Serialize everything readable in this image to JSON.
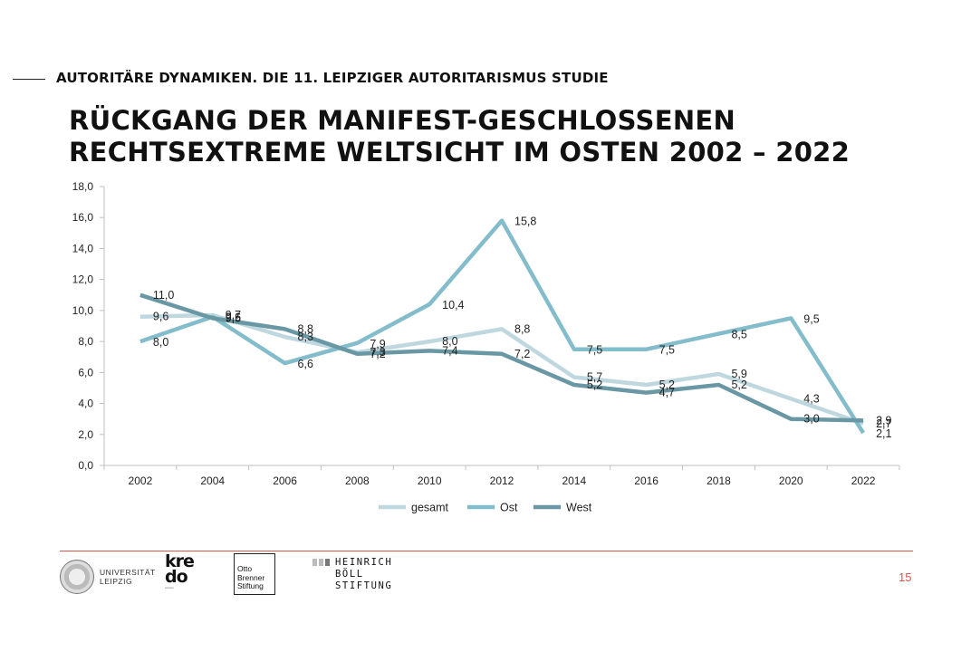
{
  "header": {
    "series_title": "AUTORITÄRE DYNAMIKEN. DIE 11. LEIPZIGER AUTORITARISMUS STUDIE",
    "title_line1": "RÜCKGANG DER MANIFEST-GESCHLOSSENEN",
    "title_line2": "RECHTSEXTREME WELTSICHT IM OSTEN 2002 – 2022"
  },
  "chart_data": {
    "type": "line",
    "title": "",
    "xlabel": "",
    "ylabel": "",
    "x": [
      "2002",
      "2004",
      "2006",
      "2008",
      "2010",
      "2012",
      "2014",
      "2016",
      "2018",
      "2020",
      "2022"
    ],
    "ylim": [
      0,
      18
    ],
    "yticks": [
      "0,0",
      "2,0",
      "4,0",
      "6,0",
      "8,0",
      "10,0",
      "12,0",
      "14,0",
      "16,0",
      "18,0"
    ],
    "grid": false,
    "legend_position": "bottom",
    "series": [
      {
        "name": "gesamt",
        "color": "#bfd8df",
        "values": [
          9.6,
          9.7,
          8.3,
          7.3,
          8.0,
          8.8,
          5.7,
          5.2,
          5.9,
          4.3,
          2.7
        ],
        "labels": [
          "9,6",
          "9,7",
          "8,3",
          "7,3",
          "8,0",
          "8,8",
          "5,7",
          "5,2",
          "5,9",
          "4,3",
          "2,7"
        ]
      },
      {
        "name": "Ost",
        "color": "#83bccb",
        "values": [
          8.0,
          9.6,
          6.6,
          7.9,
          10.4,
          15.8,
          7.5,
          7.5,
          8.5,
          9.5,
          2.1
        ],
        "labels": [
          "8,0",
          "9,6",
          "6,6",
          "7,9",
          "10,4",
          "15,8",
          "7,5",
          "7,5",
          "8,5",
          "9,5",
          "2,1"
        ]
      },
      {
        "name": "West",
        "color": "#6998a4",
        "values": [
          11.0,
          9.5,
          8.8,
          7.2,
          7.4,
          7.2,
          5.2,
          4.7,
          5.2,
          3.0,
          2.9
        ],
        "labels": [
          "11,0",
          "9,5",
          "8,8",
          "7,2",
          "7,4",
          "7,2",
          "5,2",
          "4,7",
          "5,2",
          "3,0",
          "2,9"
        ]
      }
    ]
  },
  "footer": {
    "university": [
      "UNIVERSITÄT",
      "LEIPZIG"
    ],
    "kredo": "kre do",
    "obs": [
      "Otto",
      "Brenner",
      "Stiftung"
    ],
    "hbs": [
      "HEINRICH",
      "BÖLL",
      "STIFTUNG"
    ],
    "page_number": "15"
  }
}
